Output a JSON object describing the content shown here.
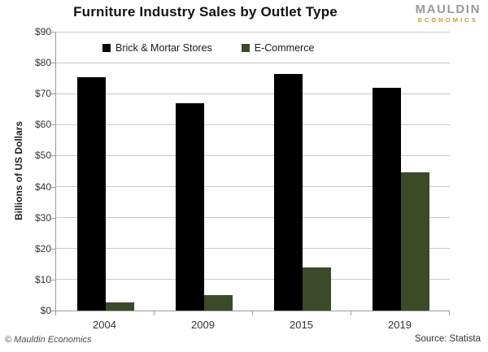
{
  "title": "Furniture Industry Sales by Outlet Type",
  "logo": {
    "line1": "MAULDIN",
    "line2": "ECONOMICS"
  },
  "footer": {
    "left": "© Mauldin Economics",
    "right": "Source: Statista"
  },
  "colors": {
    "brick_mortar_bar": "#000000",
    "ecommerce_bar": "#3b4a28",
    "gridline": "#c9c9c9",
    "axis": "#9b9b9b",
    "logo_gray": "#9a9a9a",
    "logo_gold": "#c49a2e"
  },
  "chart_data": {
    "type": "bar",
    "title": "Furniture Industry Sales by Outlet Type",
    "categories": [
      "2004",
      "2009",
      "2015",
      "2019"
    ],
    "series": [
      {
        "name": "Brick & Mortar Stores",
        "color": "#000000",
        "values": [
          75.4,
          67,
          76.4,
          72
        ]
      },
      {
        "name": "E-Commerce",
        "color": "#3b4a28",
        "values": [
          2.5,
          5,
          14,
          44.5
        ]
      }
    ],
    "xlabel": "",
    "ylabel": "Billions of US Dollars",
    "ylim": [
      0,
      90
    ],
    "ytick_step": 10,
    "yticks": [
      "$0",
      "$10",
      "$20",
      "$30",
      "$40",
      "$50",
      "$60",
      "$70",
      "$80",
      "$90"
    ],
    "grid": true,
    "legend_position": "top-inside"
  }
}
